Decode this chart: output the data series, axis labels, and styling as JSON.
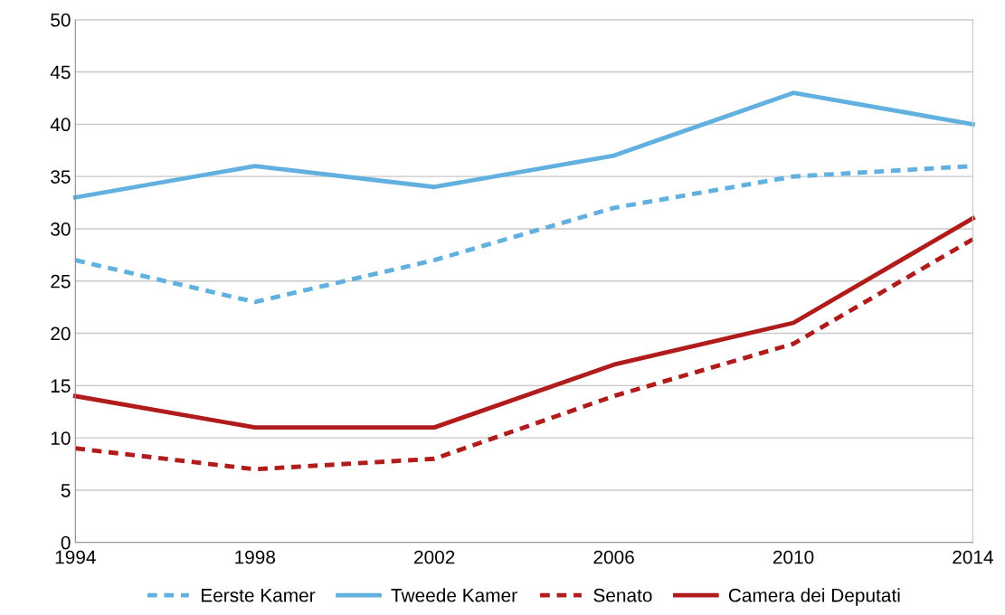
{
  "chart_data": {
    "type": "line",
    "x": [
      1994,
      1998,
      2002,
      2006,
      2010,
      2014
    ],
    "series": [
      {
        "name": "Eerste Kamer",
        "color": "#62b0df",
        "line_style": "dashed",
        "values": [
          27,
          23,
          27,
          32,
          35,
          36
        ]
      },
      {
        "name": "Tweede Kamer",
        "color": "#62b0df",
        "line_style": "solid",
        "values": [
          33,
          36,
          34,
          37,
          43,
          40
        ]
      },
      {
        "name": "Senato",
        "color": "#b01c1c",
        "line_style": "dashed",
        "values": [
          9,
          7,
          8,
          14,
          19,
          29
        ]
      },
      {
        "name": "Camera dei Deputati",
        "color": "#b01c1c",
        "line_style": "solid",
        "values": [
          14,
          11,
          11,
          17,
          21,
          31
        ]
      }
    ],
    "xlim": [
      1994,
      2014
    ],
    "xticks": [
      1994,
      1998,
      2002,
      2006,
      2010,
      2014
    ],
    "ylim": [
      0,
      50
    ],
    "yticks": [
      0,
      5,
      10,
      15,
      20,
      25,
      30,
      35,
      40,
      45,
      50
    ],
    "grid": "y",
    "legend": "bottom",
    "marker": "none"
  }
}
